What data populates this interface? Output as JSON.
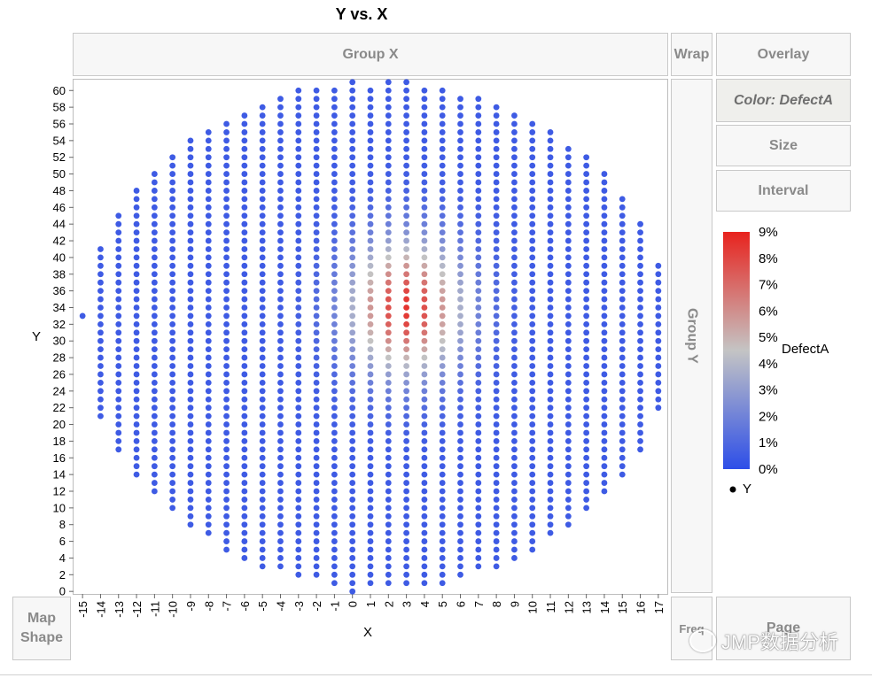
{
  "title": "Y vs. X",
  "zones": {
    "group_x": "Group X",
    "wrap": "Wrap",
    "overlay": "Overlay",
    "color": "Color: DefectA",
    "size": "Size",
    "interval": "Interval",
    "group_y": "Group Y",
    "map_shape_line1": "Map",
    "map_shape_line2": "Shape",
    "freq": "Freq",
    "page": "Page"
  },
  "watermark": "JMP数据分析",
  "colors": {
    "low": "#2d4ee8",
    "mid": "#c4c4c4",
    "high": "#e8231e",
    "frame": "#bdbdbd"
  },
  "chart_data": {
    "type": "scatter",
    "title": "Y vs. X",
    "xlabel": "X",
    "ylabel": "Y",
    "x_ticks": [
      -15,
      -14,
      -13,
      -12,
      -11,
      -10,
      -9,
      -8,
      -7,
      -6,
      -5,
      -4,
      -3,
      -2,
      -1,
      0,
      1,
      2,
      3,
      4,
      5,
      6,
      7,
      8,
      9,
      10,
      11,
      12,
      13,
      14,
      15,
      16,
      17
    ],
    "y_ticks": [
      0,
      2,
      4,
      6,
      8,
      10,
      12,
      14,
      16,
      18,
      20,
      22,
      24,
      26,
      28,
      30,
      32,
      34,
      36,
      38,
      40,
      42,
      44,
      46,
      48,
      50,
      52,
      54,
      56,
      58,
      60
    ],
    "xlim": [
      -15.5,
      17.5
    ],
    "ylim": [
      -0.3,
      61.3
    ],
    "columns": [
      {
        "x": -15,
        "y_min": 33,
        "y_max": 33
      },
      {
        "x": -14,
        "y_min": 21,
        "y_max": 41
      },
      {
        "x": -13,
        "y_min": 17,
        "y_max": 45
      },
      {
        "x": -12,
        "y_min": 14,
        "y_max": 48
      },
      {
        "x": -11,
        "y_min": 12,
        "y_max": 50
      },
      {
        "x": -10,
        "y_min": 10,
        "y_max": 52
      },
      {
        "x": -9,
        "y_min": 8,
        "y_max": 54
      },
      {
        "x": -8,
        "y_min": 7,
        "y_max": 55
      },
      {
        "x": -7,
        "y_min": 5,
        "y_max": 56
      },
      {
        "x": -6,
        "y_min": 4,
        "y_max": 57
      },
      {
        "x": -5,
        "y_min": 3,
        "y_max": 58
      },
      {
        "x": -4,
        "y_min": 3,
        "y_max": 59
      },
      {
        "x": -3,
        "y_min": 2,
        "y_max": 60
      },
      {
        "x": -2,
        "y_min": 2,
        "y_max": 60
      },
      {
        "x": -1,
        "y_min": 1,
        "y_max": 60
      },
      {
        "x": 0,
        "y_min": 0,
        "y_max": 61
      },
      {
        "x": 1,
        "y_min": 1,
        "y_max": 60
      },
      {
        "x": 2,
        "y_min": 1,
        "y_max": 61
      },
      {
        "x": 3,
        "y_min": 1,
        "y_max": 61
      },
      {
        "x": 4,
        "y_min": 1,
        "y_max": 60
      },
      {
        "x": 5,
        "y_min": 1,
        "y_max": 60
      },
      {
        "x": 6,
        "y_min": 2,
        "y_max": 59
      },
      {
        "x": 7,
        "y_min": 3,
        "y_max": 59
      },
      {
        "x": 8,
        "y_min": 3,
        "y_max": 58
      },
      {
        "x": 9,
        "y_min": 4,
        "y_max": 57
      },
      {
        "x": 10,
        "y_min": 5,
        "y_max": 56
      },
      {
        "x": 11,
        "y_min": 7,
        "y_max": 55
      },
      {
        "x": 12,
        "y_min": 8,
        "y_max": 53
      },
      {
        "x": 13,
        "y_min": 10,
        "y_max": 52
      },
      {
        "x": 14,
        "y_min": 12,
        "y_max": 50
      },
      {
        "x": 15,
        "y_min": 14,
        "y_max": 47
      },
      {
        "x": 16,
        "y_min": 17,
        "y_max": 44
      },
      {
        "x": 17,
        "y_min": 22,
        "y_max": 39
      }
    ],
    "color_by": {
      "variable": "DefectA",
      "min": 0,
      "max": 9,
      "baseline": 0.5,
      "hotspot": {
        "x": 3,
        "y": 34,
        "peak": 8.5,
        "sigma_x": 2.2,
        "sigma_y": 5.5
      },
      "ticks": [
        "9%",
        "8%",
        "7%",
        "6%",
        "5%",
        "4%",
        "3%",
        "2%",
        "1%",
        "0%"
      ]
    },
    "legend": {
      "title": "DefectA",
      "marker_label": "Y",
      "position": "right"
    },
    "grid": false
  }
}
